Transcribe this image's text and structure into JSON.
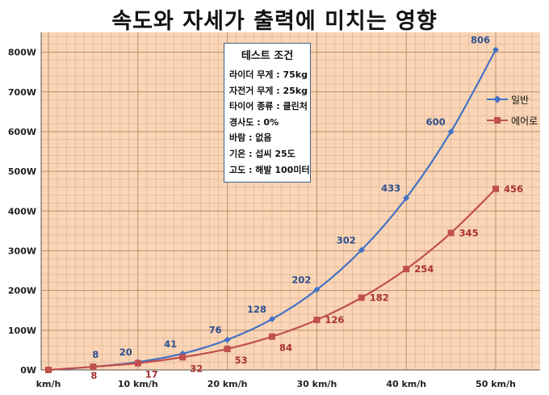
{
  "chart_data": {
    "type": "line",
    "title": "속도와 자세가 출력에 미치는 영향",
    "x": [
      0,
      5,
      10,
      15,
      20,
      25,
      30,
      35,
      40,
      45,
      50
    ],
    "x_tick_labels": [
      "km/h",
      "10 km/h",
      "20 km/h",
      "30 km/h",
      "40 km/h",
      "50 km/h"
    ],
    "x_tick_values": [
      0,
      10,
      20,
      30,
      40,
      50
    ],
    "xlim": [
      0,
      54
    ],
    "ylim": [
      0,
      850
    ],
    "y_tick_values": [
      0,
      100,
      200,
      300,
      400,
      500,
      600,
      700,
      800
    ],
    "y_tick_labels": [
      "0W",
      "100W",
      "200W",
      "300W",
      "400W",
      "500W",
      "600W",
      "700W",
      "800W"
    ],
    "grid": true,
    "series": [
      {
        "name": "일반",
        "color": "#4472c4",
        "marker": "diamond",
        "values": [
          0,
          8,
          20,
          41,
          76,
          128,
          202,
          302,
          433,
          600,
          806
        ],
        "labels": [
          "",
          "8",
          "20",
          "41",
          "76",
          "128",
          "202",
          "302",
          "433",
          "600",
          "806"
        ]
      },
      {
        "name": "에어로",
        "color": "#c0504d",
        "marker": "square",
        "values": [
          0,
          8,
          17,
          32,
          53,
          84,
          126,
          182,
          254,
          345,
          456
        ],
        "labels": [
          "",
          "8",
          "17",
          "32",
          "53",
          "84",
          "126",
          "182",
          "254",
          "345",
          "456"
        ]
      }
    ],
    "annotation": {
      "title": "테스트 조건",
      "lines": [
        "라이더 무게 : 75kg",
        "자전거 무게 : 25kg",
        "타이어 종류 : 클린처",
        "경사도 : 0%",
        "바람 : 없음",
        "기온 : 섭씨 25도",
        "고도 : 해발 100미터"
      ]
    },
    "legend": "right"
  }
}
